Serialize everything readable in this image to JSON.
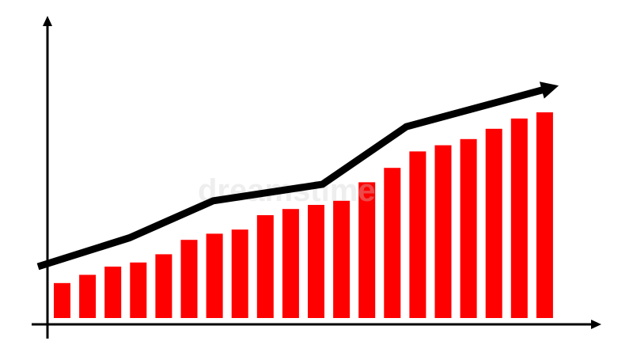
{
  "chart_data": {
    "type": "bar",
    "title": "",
    "xlabel": "",
    "ylabel": "",
    "ylim": [
      0,
      100
    ],
    "grid": false,
    "legend": "none",
    "values": [
      17,
      21,
      25,
      27,
      31,
      38,
      41,
      43,
      50,
      53,
      55,
      57,
      66,
      73,
      81,
      84,
      87,
      92,
      97,
      100
    ],
    "bar_color": "#ff0000",
    "trend_line": {
      "color": "#000000",
      "arrow": true,
      "points": [
        {
          "x": 0,
          "y": 25
        },
        {
          "x": 3.6,
          "y": 39
        },
        {
          "x": 6.9,
          "y": 57
        },
        {
          "x": 11.2,
          "y": 65
        },
        {
          "x": 14.5,
          "y": 93
        },
        {
          "x": 20.5,
          "y": 113
        }
      ]
    }
  },
  "watermark": "dreamstime",
  "axes": {
    "color": "#000000",
    "arrows": true
  }
}
